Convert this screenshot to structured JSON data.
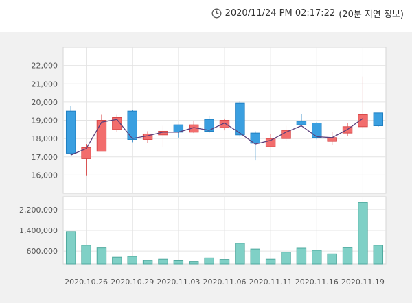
{
  "header": {
    "timestamp": "2020/11/24 PM 02:17:22",
    "delay_note": "(20분 지연 정보)",
    "clock_icon": "clock-icon"
  },
  "chart_data": [
    {
      "type": "candlestick",
      "title": "",
      "ylim": [
        15000,
        23000
      ],
      "yticks": [
        16000,
        17000,
        18000,
        19000,
        20000,
        21000,
        22000
      ],
      "ytick_labels": [
        "16,000",
        "17,000",
        "18,000",
        "19,000",
        "20,000",
        "21,000",
        "22,000"
      ],
      "up_color": "#f26d6d",
      "down_color": "#3a9fe0",
      "line_color": "#5b3f7a",
      "grid": true,
      "candles": [
        {
          "open": 19500,
          "high": 19800,
          "low": 17100,
          "close": 17200,
          "line": 17100
        },
        {
          "open": 16900,
          "high": 17700,
          "low": 15950,
          "close": 17500,
          "line": 17450
        },
        {
          "open": 17300,
          "high": 19300,
          "low": 17300,
          "close": 19000,
          "line": 18900
        },
        {
          "open": 18500,
          "high": 19300,
          "low": 18350,
          "close": 19150,
          "line": 19050
        },
        {
          "open": 19500,
          "high": 19550,
          "low": 17800,
          "close": 17950,
          "line": 18000
        },
        {
          "open": 17950,
          "high": 18400,
          "low": 17750,
          "close": 18250,
          "line": 18150
        },
        {
          "open": 18200,
          "high": 18700,
          "low": 17550,
          "close": 18400,
          "line": 18350
        },
        {
          "open": 18750,
          "high": 18750,
          "low": 18050,
          "close": 18350,
          "line": 18350
        },
        {
          "open": 18350,
          "high": 18950,
          "low": 18300,
          "close": 18750,
          "line": 18600
        },
        {
          "open": 19050,
          "high": 19250,
          "low": 18300,
          "close": 18400,
          "line": 18450
        },
        {
          "open": 18600,
          "high": 19100,
          "low": 18450,
          "close": 19000,
          "line": 18850
        },
        {
          "open": 19950,
          "high": 20050,
          "low": 18100,
          "close": 18200,
          "line": 18300
        },
        {
          "open": 18300,
          "high": 18400,
          "low": 16800,
          "close": 17750,
          "line": 17700
        },
        {
          "open": 17550,
          "high": 18250,
          "low": 17550,
          "close": 18000,
          "line": 17900
        },
        {
          "open": 18000,
          "high": 18700,
          "low": 17850,
          "close": 18450,
          "line": 18350
        },
        {
          "open": 18950,
          "high": 19350,
          "low": 18650,
          "close": 18750,
          "line": 18700
        },
        {
          "open": 18850,
          "high": 18900,
          "low": 17950,
          "close": 18050,
          "line": 18100
        },
        {
          "open": 17850,
          "high": 18350,
          "low": 17650,
          "close": 18050,
          "line": 18050
        },
        {
          "open": 18300,
          "high": 18850,
          "low": 18150,
          "close": 18650,
          "line": 18500
        },
        {
          "open": 18650,
          "high": 21400,
          "low": 18550,
          "close": 19300,
          "line": 19100
        },
        {
          "open": 19400,
          "high": 19400,
          "low": 18650,
          "close": 18700,
          "line": null
        }
      ]
    },
    {
      "type": "bar",
      "title": "",
      "ylim": [
        100000,
        2700000
      ],
      "yticks": [
        600000,
        1400000,
        2200000
      ],
      "ytick_labels": [
        "600,000",
        "1,400,000",
        "2,200,000"
      ],
      "bar_color": "#7fd0c6",
      "bar_border": "#4fa99e",
      "values": [
        1350000,
        820000,
        720000,
        360000,
        390000,
        230000,
        280000,
        220000,
        190000,
        330000,
        270000,
        900000,
        680000,
        280000,
        560000,
        710000,
        630000,
        490000,
        730000,
        2480000,
        820000
      ]
    }
  ],
  "x_axis": {
    "tick_labels": [
      "2020.10.26",
      "2020.10.29",
      "2020.11.03",
      "2020.11.06",
      "2020.11.11",
      "2020.11.16",
      "2020.11.19"
    ],
    "tick_indices": [
      1,
      4,
      7,
      10,
      13,
      16,
      19
    ]
  }
}
